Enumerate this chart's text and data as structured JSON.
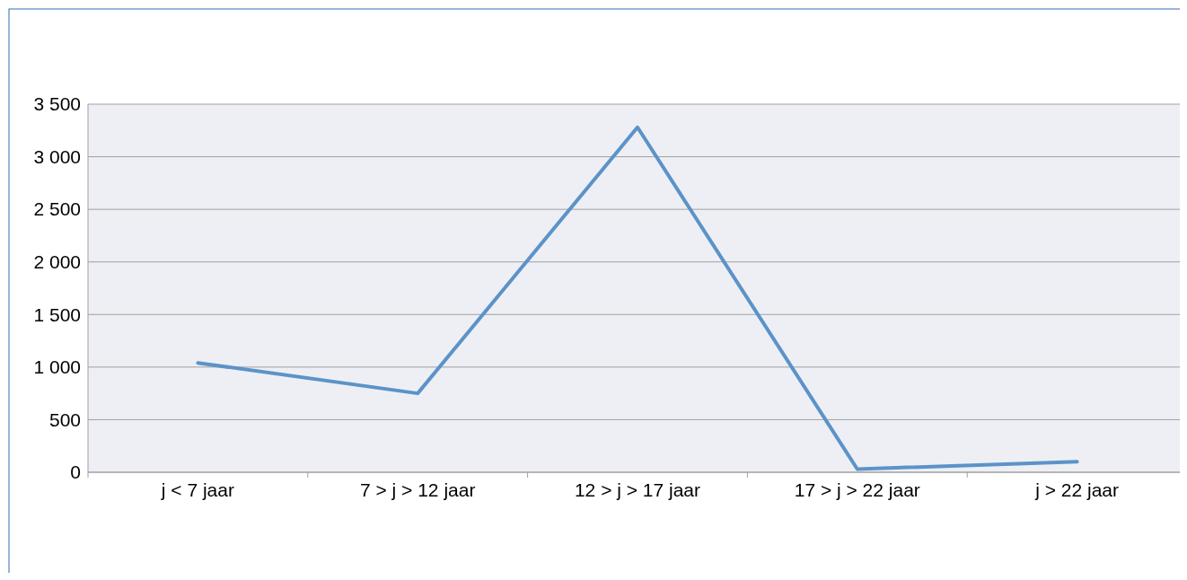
{
  "chart_data": {
    "type": "line",
    "categories": [
      "j < 7 jaar",
      "7 > j > 12 jaar",
      "12 > j > 17 jaar",
      "17 > j > 22 jaar",
      "j > 22 jaar"
    ],
    "series": [
      {
        "color": "#5b93c9",
        "values": [
          1040,
          750,
          3280,
          30,
          100
        ]
      }
    ],
    "ylim": [
      0,
      3500
    ],
    "yticks": [
      0,
      500,
      {
        "value": 1000,
        "label": "1 000"
      },
      {
        "value": 1500,
        "label": "1 500"
      },
      {
        "value": 2000,
        "label": "2 000"
      },
      {
        "value": 2500,
        "label": "2 500"
      },
      {
        "value": 3000,
        "label": "3 000"
      },
      {
        "value": 3500,
        "label": "3 500"
      }
    ],
    "grid": "y",
    "marker": "none",
    "line_style": "solid"
  }
}
